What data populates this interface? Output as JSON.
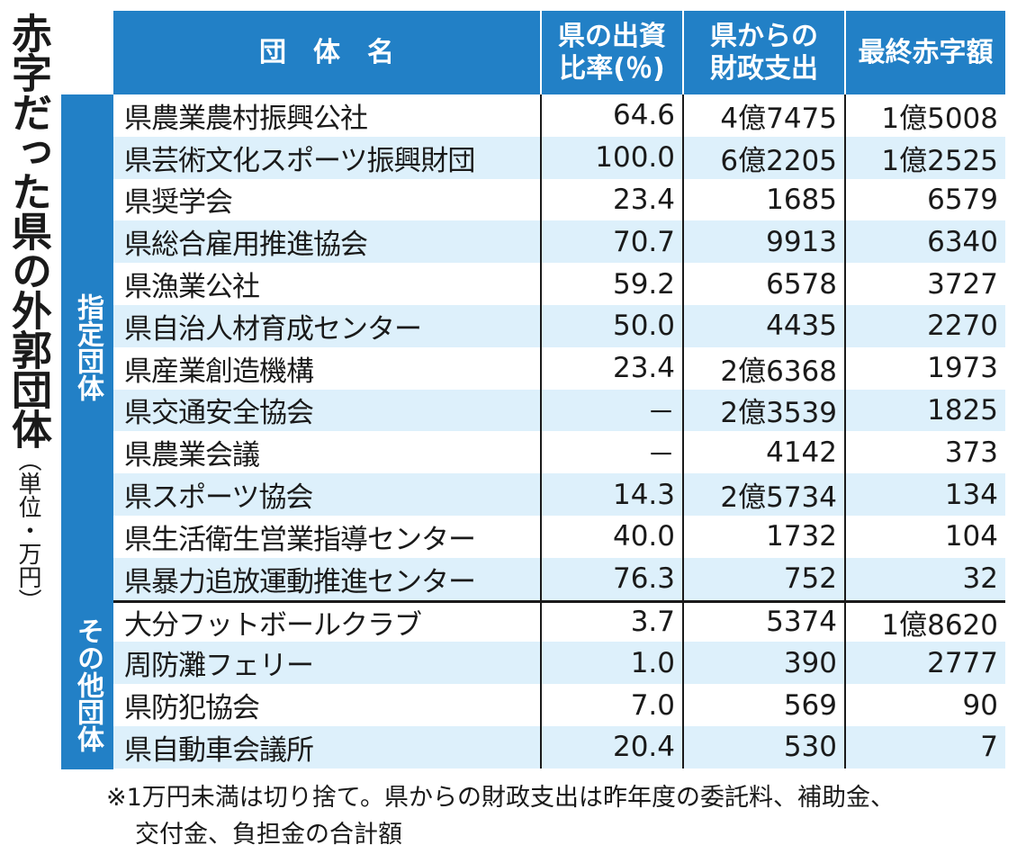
{
  "title": "赤字だった県の外郭団体",
  "unit": "（単位・万円）",
  "headers": [
    "団　体　名",
    "県の出資比率(％)",
    "県からの財政支出",
    "最終赤字額"
  ],
  "groups": [
    {
      "label": "指定団体",
      "rows": [
        [
          "県農業農村振興公社",
          "64.6",
          "4億7475",
          "1億5008"
        ],
        [
          "県芸術文化スポーツ振興財団",
          "100.0",
          "6億2205",
          "1億2525"
        ],
        [
          "県奨学会",
          "23.4",
          "1685",
          "6579"
        ],
        [
          "県総合雇用推進協会",
          "70.7",
          "9913",
          "6340"
        ],
        [
          "県漁業公社",
          "59.2",
          "6578",
          "3727"
        ],
        [
          "県自治人材育成センター",
          "50.0",
          "4435",
          "2270"
        ],
        [
          "県産業創造機構",
          "23.4",
          "2億6368",
          "1973"
        ],
        [
          "県交通安全協会",
          "－",
          "2億3539",
          "1825"
        ],
        [
          "県農業会議",
          "－",
          "4142",
          "373"
        ],
        [
          "県スポーツ協会",
          "14.3",
          "2億5734",
          "134"
        ],
        [
          "県生活衛生営業指導センター",
          "40.0",
          "1732",
          "104"
        ],
        [
          "県暴力追放運動推進センター",
          "76.3",
          "752",
          "32"
        ]
      ]
    },
    {
      "label": "その他団体",
      "rows": [
        [
          "大分フットボールクラブ",
          "3.7",
          "5374",
          "1億8620"
        ],
        [
          "周防灘フェリー",
          "1.0",
          "390",
          "2777"
        ],
        [
          "県防犯協会",
          "7.0",
          "569",
          "90"
        ],
        [
          "県自動車会議所",
          "20.4",
          "530",
          "7"
        ]
      ]
    }
  ],
  "note": [
    "※1万円未満は切り捨て。県からの財政支出は昨年度の委託料、補助金、",
    "交付金、負担金の合計額"
  ],
  "colors": {
    "header": "#2280c6",
    "stripe": "#ddf0fb"
  }
}
